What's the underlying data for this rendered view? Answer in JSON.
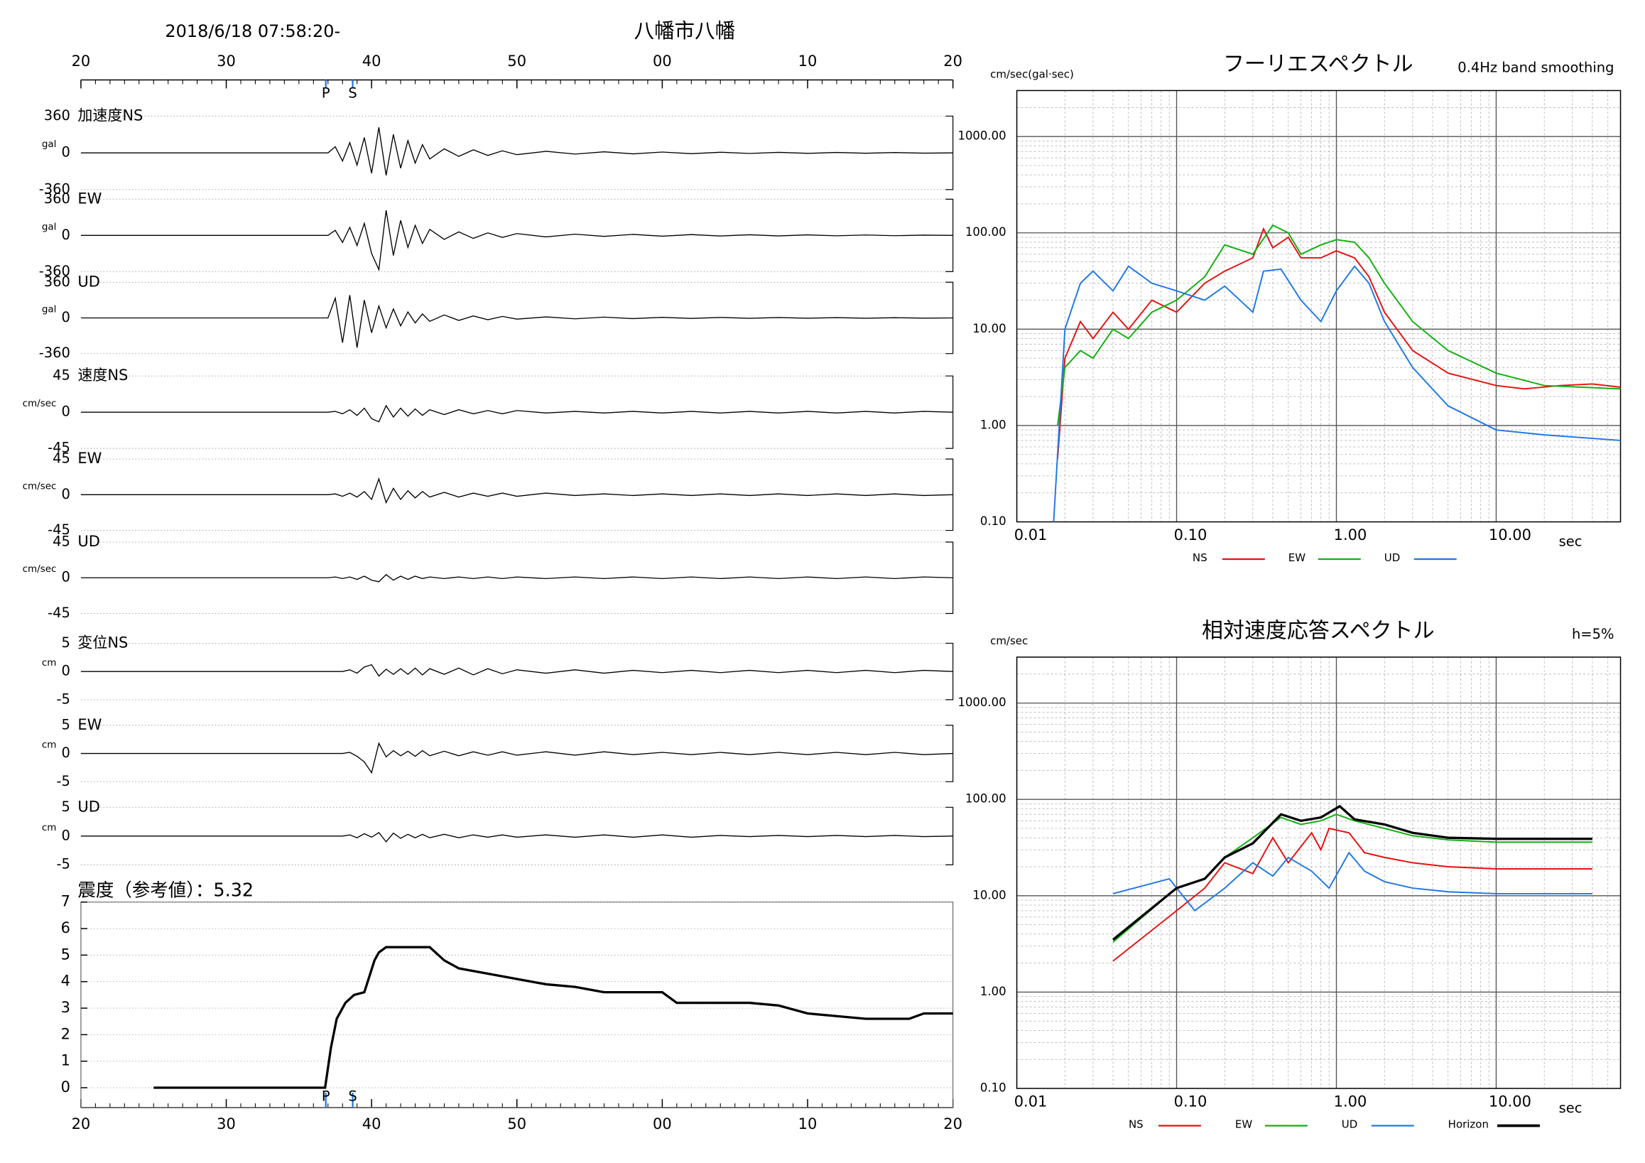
{
  "header": {
    "datetime": "2018/6/18 07:58:20-",
    "station": "八幡市八幡"
  },
  "time_axis": {
    "xlim": [
      20,
      80
    ],
    "xticks": [
      20,
      30,
      40,
      50,
      {
        "value": 60,
        "label": "00"
      },
      {
        "value": 70,
        "label": "10"
      },
      {
        "value": 80,
        "label": "20"
      }
    ],
    "phases": [
      {
        "label": "P",
        "x": 36.85
      },
      {
        "label": "S",
        "x": 38.7
      }
    ],
    "x": [
      20,
      37,
      37.5,
      38,
      38.5,
      39,
      39.5,
      40,
      40.5,
      41,
      41.5,
      42,
      42.5,
      43,
      43.5,
      44,
      45,
      46,
      47,
      48,
      49,
      50,
      52,
      54,
      56,
      58,
      60,
      62,
      64,
      66,
      68,
      70,
      72,
      74,
      76,
      78,
      80
    ]
  },
  "chart_data": [
    {
      "type": "waveform",
      "label": "加速度NS",
      "unit": "gal",
      "color": "#000000",
      "ylim": [
        -360,
        360
      ],
      "yticks": [
        -360,
        0,
        360
      ],
      "values": [
        0,
        0,
        60,
        -80,
        100,
        -120,
        150,
        -200,
        250,
        -220,
        180,
        -150,
        120,
        -100,
        80,
        -60,
        40,
        -35,
        30,
        -25,
        20,
        -18,
        15,
        -12,
        10,
        -10,
        8,
        -8,
        6,
        -6,
        5,
        -5,
        4,
        -4,
        3,
        -3,
        0
      ]
    },
    {
      "type": "waveform",
      "label": "EW",
      "unit": "gal",
      "color": "#000000",
      "ylim": [
        -360,
        360
      ],
      "yticks": [
        -360,
        0,
        360
      ],
      "values": [
        0,
        0,
        50,
        -70,
        80,
        -100,
        120,
        -180,
        -340,
        250,
        -200,
        150,
        -120,
        100,
        -80,
        60,
        -40,
        35,
        -30,
        25,
        -20,
        18,
        -15,
        12,
        -10,
        10,
        -8,
        8,
        -6,
        6,
        -5,
        5,
        -4,
        4,
        -3,
        3,
        0
      ]
    },
    {
      "type": "waveform",
      "label": "UD",
      "unit": "gal",
      "color": "#000000",
      "ylim": [
        -360,
        360
      ],
      "yticks": [
        -360,
        0,
        360
      ],
      "values": [
        0,
        0,
        200,
        -250,
        230,
        -300,
        180,
        -150,
        120,
        -100,
        90,
        -80,
        60,
        -50,
        40,
        -35,
        30,
        -25,
        20,
        -18,
        15,
        -12,
        10,
        -9,
        8,
        -7,
        6,
        -5,
        5,
        -4,
        4,
        -3,
        3,
        -3,
        2,
        -2,
        0
      ]
    },
    {
      "type": "waveform",
      "label": "速度NS",
      "unit": "cm/sec",
      "color": "#000000",
      "ylim": [
        -45,
        45
      ],
      "yticks": [
        -45,
        0,
        45
      ],
      "values": [
        0,
        0,
        1,
        -2,
        3,
        -4,
        5,
        -8,
        -12,
        8,
        -6,
        5,
        -5,
        4,
        -4,
        3,
        -3,
        3,
        -2,
        2,
        -2,
        2,
        -1,
        1,
        -1,
        1,
        -1,
        1,
        -1,
        1,
        -1,
        1,
        -1,
        1,
        -1,
        1,
        0
      ]
    },
    {
      "type": "waveform",
      "label": "EW",
      "unit": "cm/sec",
      "color": "#000000",
      "ylim": [
        -45,
        45
      ],
      "yticks": [
        -45,
        0,
        45
      ],
      "values": [
        0,
        0,
        1,
        -2,
        2,
        -3,
        4,
        -6,
        20,
        -10,
        8,
        -6,
        5,
        -4,
        4,
        -3,
        3,
        -3,
        2,
        -2,
        2,
        -2,
        2,
        -1,
        1,
        -1,
        1,
        -1,
        1,
        -1,
        1,
        -1,
        1,
        -1,
        1,
        -1,
        0
      ]
    },
    {
      "type": "waveform",
      "label": "UD",
      "unit": "cm/sec",
      "color": "#000000",
      "ylim": [
        -45,
        45
      ],
      "yticks": [
        -45,
        0,
        45
      ],
      "values": [
        0,
        0,
        1,
        -1,
        1,
        -2,
        2,
        -3,
        -5,
        4,
        -3,
        2,
        -2,
        2,
        -1,
        1,
        -1,
        1,
        -1,
        1,
        -1,
        1,
        -1,
        1,
        -1,
        1,
        -1,
        1,
        -1,
        1,
        -1,
        1,
        -1,
        1,
        -1,
        1,
        0
      ]
    },
    {
      "type": "waveform",
      "label": "変位NS",
      "unit": "cm",
      "color": "#000000",
      "ylim": [
        -5,
        5
      ],
      "yticks": [
        -5,
        0,
        5
      ],
      "values": [
        0,
        0,
        0,
        0,
        0.3,
        -0.3,
        0.8,
        1.2,
        -0.8,
        0.4,
        -0.5,
        0.5,
        -0.5,
        0.6,
        -0.6,
        0.5,
        -0.5,
        0.6,
        -0.6,
        0.5,
        -0.4,
        0.3,
        -0.3,
        0.3,
        -0.3,
        0.2,
        -0.2,
        0.2,
        -0.2,
        0.2,
        -0.2,
        0.2,
        -0.2,
        0.2,
        -0.2,
        0.2,
        0
      ]
    },
    {
      "type": "waveform",
      "label": "EW",
      "unit": "cm",
      "color": "#000000",
      "ylim": [
        -5,
        5
      ],
      "yticks": [
        -5,
        0,
        5
      ],
      "values": [
        0,
        0,
        0,
        0,
        0.2,
        -0.5,
        -1.5,
        -3.4,
        1.8,
        -0.6,
        0.5,
        -0.4,
        0.4,
        -0.5,
        0.5,
        -0.4,
        0.4,
        -0.4,
        0.3,
        -0.3,
        0.3,
        -0.3,
        0.3,
        -0.3,
        0.3,
        -0.2,
        0.2,
        -0.2,
        0.2,
        -0.2,
        0.2,
        -0.2,
        0.2,
        -0.2,
        0.2,
        -0.2,
        0
      ]
    },
    {
      "type": "waveform",
      "label": "UD",
      "unit": "cm",
      "color": "#000000",
      "ylim": [
        -5,
        5
      ],
      "yticks": [
        -5,
        0,
        5
      ],
      "values": [
        0,
        0,
        0,
        0,
        0.2,
        -0.3,
        0.4,
        -0.2,
        0.6,
        -1.0,
        0.5,
        -0.4,
        0.3,
        -0.3,
        0.3,
        -0.3,
        0.3,
        -0.3,
        0.2,
        -0.2,
        0.2,
        -0.2,
        0.2,
        -0.2,
        0.2,
        -0.2,
        0.2,
        -0.2,
        0.1,
        -0.1,
        0.1,
        -0.1,
        0.1,
        -0.1,
        0.1,
        -0.1,
        0
      ]
    },
    {
      "type": "intensity",
      "title": "震度（参考値）：5.32",
      "color": "#000000",
      "ylim": [
        -0.75,
        7
      ],
      "yticks": [
        0,
        1,
        2,
        3,
        4,
        5,
        6,
        7
      ],
      "grid": true,
      "x": [
        25,
        36.8,
        37.2,
        37.6,
        38.2,
        38.8,
        39.5,
        40.2,
        40.5,
        41,
        44,
        45,
        46,
        48,
        50,
        52,
        54,
        56,
        58,
        60,
        61,
        62,
        64,
        66,
        68,
        70,
        72,
        74,
        76,
        77,
        78,
        80
      ],
      "values": [
        0,
        0,
        1.5,
        2.6,
        3.2,
        3.5,
        3.6,
        4.8,
        5.1,
        5.3,
        5.3,
        4.8,
        4.5,
        4.3,
        4.1,
        3.9,
        3.8,
        3.6,
        3.6,
        3.6,
        3.2,
        3.2,
        3.2,
        3.2,
        3.1,
        2.8,
        2.7,
        2.6,
        2.6,
        2.6,
        2.8,
        2.8
      ]
    },
    {
      "type": "spectrum",
      "title": "フーリエスペクトル",
      "note": "0.4Hz band smoothing",
      "ylabel": "cm/sec(gal·sec)",
      "xlabel": "sec",
      "log_x": true,
      "log_y": true,
      "grid": true,
      "legend": "bottom",
      "xlim": [
        0.01,
        60
      ],
      "xticks": [
        0.01,
        {
          "value": 0.1,
          "label": "0.10"
        },
        {
          "value": 1,
          "label": "1.00"
        },
        {
          "value": 10,
          "label": "10.00"
        }
      ],
      "ylim": [
        0.1,
        3000
      ],
      "yticks": [
        {
          "value": 0.1,
          "label": "0.10"
        },
        {
          "value": 1,
          "label": "1.00"
        },
        {
          "value": 10,
          "label": "10.00"
        },
        {
          "value": 100,
          "label": "100.00"
        },
        {
          "value": 1000,
          "label": "1000.00"
        }
      ],
      "series": [
        {
          "name": "NS",
          "color": "#e81010",
          "x": [
            0.018,
            0.02,
            0.025,
            0.03,
            0.04,
            0.05,
            0.07,
            0.1,
            0.15,
            0.2,
            0.3,
            0.35,
            0.4,
            0.5,
            0.6,
            0.8,
            1,
            1.3,
            1.6,
            2,
            3,
            5,
            10,
            15,
            25,
            40,
            60
          ],
          "values": [
            0.45,
            5,
            12,
            8,
            15,
            10,
            20,
            15,
            30,
            40,
            55,
            110,
            70,
            90,
            55,
            55,
            65,
            55,
            35,
            15,
            6,
            3.5,
            2.6,
            2.4,
            2.6,
            2.7,
            2.5
          ]
        },
        {
          "name": "EW",
          "color": "#10b010",
          "x": [
            0.018,
            0.02,
            0.025,
            0.03,
            0.04,
            0.05,
            0.07,
            0.1,
            0.15,
            0.2,
            0.3,
            0.4,
            0.5,
            0.6,
            0.8,
            1,
            1.3,
            1.6,
            2,
            3,
            5,
            10,
            20,
            60
          ],
          "values": [
            1,
            4,
            6,
            5,
            10,
            8,
            15,
            20,
            35,
            75,
            60,
            120,
            100,
            60,
            75,
            85,
            80,
            55,
            30,
            12,
            6,
            3.5,
            2.6,
            2.4
          ]
        },
        {
          "name": "UD",
          "color": "#1e78e6",
          "x": [
            0.017,
            0.02,
            0.025,
            0.03,
            0.04,
            0.05,
            0.07,
            0.1,
            0.15,
            0.2,
            0.3,
            0.35,
            0.45,
            0.6,
            0.8,
            1,
            1.3,
            1.6,
            2,
            3,
            5,
            10,
            20,
            60
          ],
          "values": [
            0.1,
            10,
            30,
            40,
            25,
            45,
            30,
            25,
            20,
            28,
            15,
            40,
            42,
            20,
            12,
            25,
            45,
            30,
            12,
            4,
            1.6,
            0.9,
            0.8,
            0.7
          ]
        }
      ]
    },
    {
      "type": "spectrum",
      "title": "相対速度応答スペクトル",
      "note": "h=5%",
      "ylabel": "cm/sec",
      "xlabel": "sec",
      "log_x": true,
      "log_y": true,
      "grid": true,
      "legend": "bottom",
      "xlim": [
        0.01,
        60
      ],
      "xticks": [
        0.01,
        {
          "value": 0.1,
          "label": "0.10"
        },
        {
          "value": 1,
          "label": "1.00"
        },
        {
          "value": 10,
          "label": "10.00"
        }
      ],
      "ylim": [
        0.1,
        3000
      ],
      "yticks": [
        {
          "value": 0.1,
          "label": "0.10"
        },
        {
          "value": 1,
          "label": "1.00"
        },
        {
          "value": 10,
          "label": "10.00"
        },
        {
          "value": 100,
          "label": "100.00"
        },
        {
          "value": 1000,
          "label": "1000.00"
        }
      ],
      "series": [
        {
          "name": "NS",
          "color": "#e81010",
          "x": [
            0.04,
            0.1,
            0.15,
            0.2,
            0.3,
            0.4,
            0.5,
            0.7,
            0.8,
            0.9,
            1.2,
            1.5,
            2,
            3,
            5,
            10,
            40
          ],
          "values": [
            2.1,
            7,
            12,
            22,
            17,
            40,
            22,
            45,
            30,
            50,
            45,
            28,
            25,
            22,
            20,
            19,
            19
          ]
        },
        {
          "name": "EW",
          "color": "#10b010",
          "x": [
            0.04,
            0.1,
            0.15,
            0.2,
            0.3,
            0.45,
            0.6,
            0.8,
            1,
            1.3,
            2,
            3,
            5,
            10,
            40
          ],
          "values": [
            3.3,
            12,
            15,
            25,
            40,
            65,
            55,
            60,
            70,
            60,
            50,
            42,
            38,
            36,
            36
          ]
        },
        {
          "name": "UD",
          "color": "#1e78e6",
          "x": [
            0.04,
            0.09,
            0.13,
            0.2,
            0.3,
            0.4,
            0.5,
            0.7,
            0.9,
            1.2,
            1.5,
            2,
            3,
            5,
            10,
            40
          ],
          "values": [
            10.5,
            15,
            7,
            12,
            22,
            16,
            25,
            18,
            12,
            28,
            18,
            14,
            12,
            11,
            10.5,
            10.5
          ]
        },
        {
          "name": "Horizon",
          "color": "#000000",
          "x": [
            0.04,
            0.1,
            0.15,
            0.2,
            0.3,
            0.45,
            0.6,
            0.8,
            1.05,
            1.3,
            2,
            3,
            5,
            10,
            40
          ],
          "values": [
            3.5,
            12,
            15,
            25,
            35,
            70,
            60,
            65,
            85,
            62,
            55,
            45,
            40,
            39,
            39
          ]
        }
      ]
    }
  ]
}
